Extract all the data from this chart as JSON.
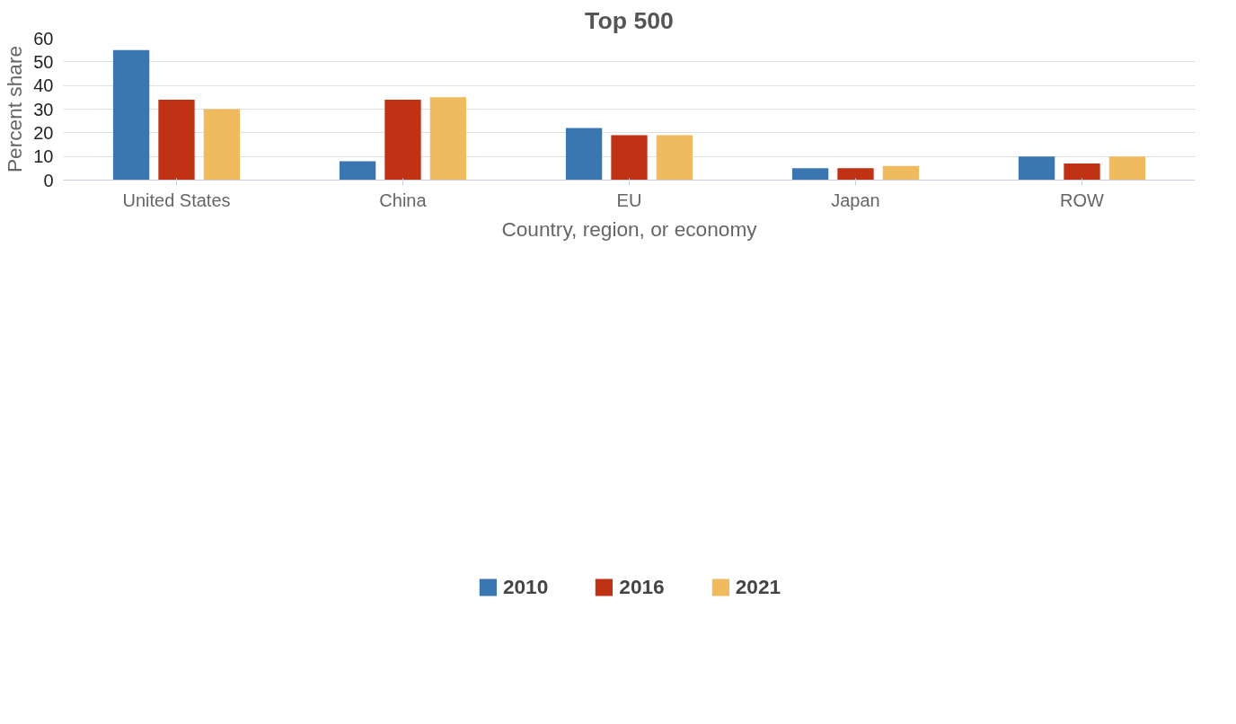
{
  "chart_data": {
    "type": "bar",
    "title": "Top 500",
    "xlabel": "Country, region, or economy",
    "ylabel": "Percent share",
    "categories": [
      "United States",
      "China",
      "EU",
      "Japan",
      "ROW"
    ],
    "series": [
      {
        "name": "2010",
        "color": "#3a76b0",
        "values": [
          55,
          8,
          22,
          5,
          10
        ]
      },
      {
        "name": "2016",
        "color": "#bf3214",
        "values": [
          34,
          34,
          19,
          5,
          7
        ]
      },
      {
        "name": "2021",
        "color": "#f0ba5e",
        "values": [
          30,
          35,
          19,
          6,
          10
        ]
      }
    ],
    "ylim": [
      0,
      60
    ],
    "yticks": [
      0,
      10,
      20,
      30,
      40,
      50,
      60
    ],
    "grid": "y",
    "legend": "bottom"
  }
}
